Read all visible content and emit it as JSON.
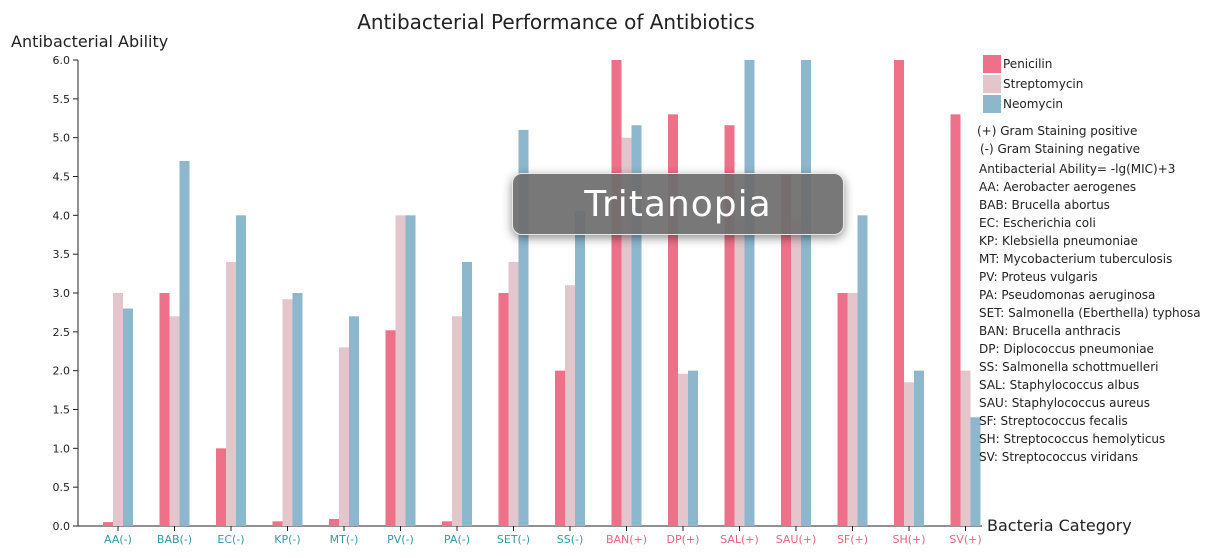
{
  "chart_data": {
    "type": "bar",
    "title": "Antibacterial Performance of Antibiotics",
    "ylabel": "Antibacterial Ability",
    "xlabel": "Bacteria Category",
    "ylim": [
      0,
      6
    ],
    "yticks": [
      "0.0",
      "0.5",
      "1.0",
      "1.5",
      "2.0",
      "2.5",
      "3.0",
      "3.5",
      "4.0",
      "4.5",
      "5.0",
      "5.5",
      "6.0"
    ],
    "categories": [
      "AA(-)",
      "BAB(-)",
      "EC(-)",
      "KP(-)",
      "MT(-)",
      "PV(-)",
      "PA(-)",
      "SET(-)",
      "SS(-)",
      "BAN(+)",
      "DP(+)",
      "SAL(+)",
      "SAU(+)",
      "SF(+)",
      "SH(+)",
      "SV(+)"
    ],
    "gram": [
      "-",
      "-",
      "-",
      "-",
      "-",
      "-",
      "-",
      "-",
      "-",
      "+",
      "+",
      "+",
      "+",
      "+",
      "+",
      "+"
    ],
    "series": [
      {
        "name": "Penicilin",
        "color": "#ee7089",
        "values": [
          0.05,
          3.0,
          1.0,
          0.06,
          0.09,
          2.52,
          0.06,
          3.0,
          2.0,
          6.0,
          5.3,
          5.16,
          4.52,
          3.0,
          6.0,
          5.3
        ]
      },
      {
        "name": "Streptomycin",
        "color": "#e2c6cc",
        "values": [
          3.0,
          2.7,
          3.4,
          2.92,
          2.3,
          4.0,
          2.7,
          3.4,
          3.1,
          5.0,
          1.96,
          3.96,
          3.96,
          3.0,
          1.85,
          2.0
        ]
      },
      {
        "name": "Neomycin",
        "color": "#8db7cc",
        "values": [
          2.8,
          4.7,
          4.0,
          3.0,
          2.7,
          4.0,
          3.4,
          5.1,
          4.05,
          5.16,
          2.0,
          6.0,
          6.0,
          4.0,
          2.0,
          1.4
        ]
      }
    ],
    "legend_position": "right",
    "grid": false
  },
  "colors": {
    "gram_positive": "#e8647f",
    "gram_negative": "#2f9aaa",
    "axis": "#222222"
  },
  "notes": {
    "gram_positive": "(+) Gram Staining positive",
    "gram_negative": "(-) Gram Staining negative",
    "definitions": [
      "Antibacterial Ability= -lg(MIC)+3",
      "AA: Aerobacter aerogenes",
      "BAB: Brucella abortus",
      "EC: Escherichia coli",
      "KP: Klebsiella pneumoniae",
      "MT: Mycobacterium tuberculosis",
      "PV: Proteus vulgaris",
      "PA: Pseudomonas aeruginosa",
      "SET: Salmonella (Eberthella) typhosa",
      "BAN: Brucella anthracis",
      "DP: Diplococcus pneumoniae",
      "SS: Salmonella schottmuelleri",
      "SAL: Staphylococcus albus",
      "SAU: Staphylococcus aureus",
      "SF: Streptococcus fecalis",
      "SH: Streptococcus hemolyticus",
      "SV: Streptococcus viridans"
    ]
  },
  "overlay": {
    "label": "Tritanopia"
  }
}
